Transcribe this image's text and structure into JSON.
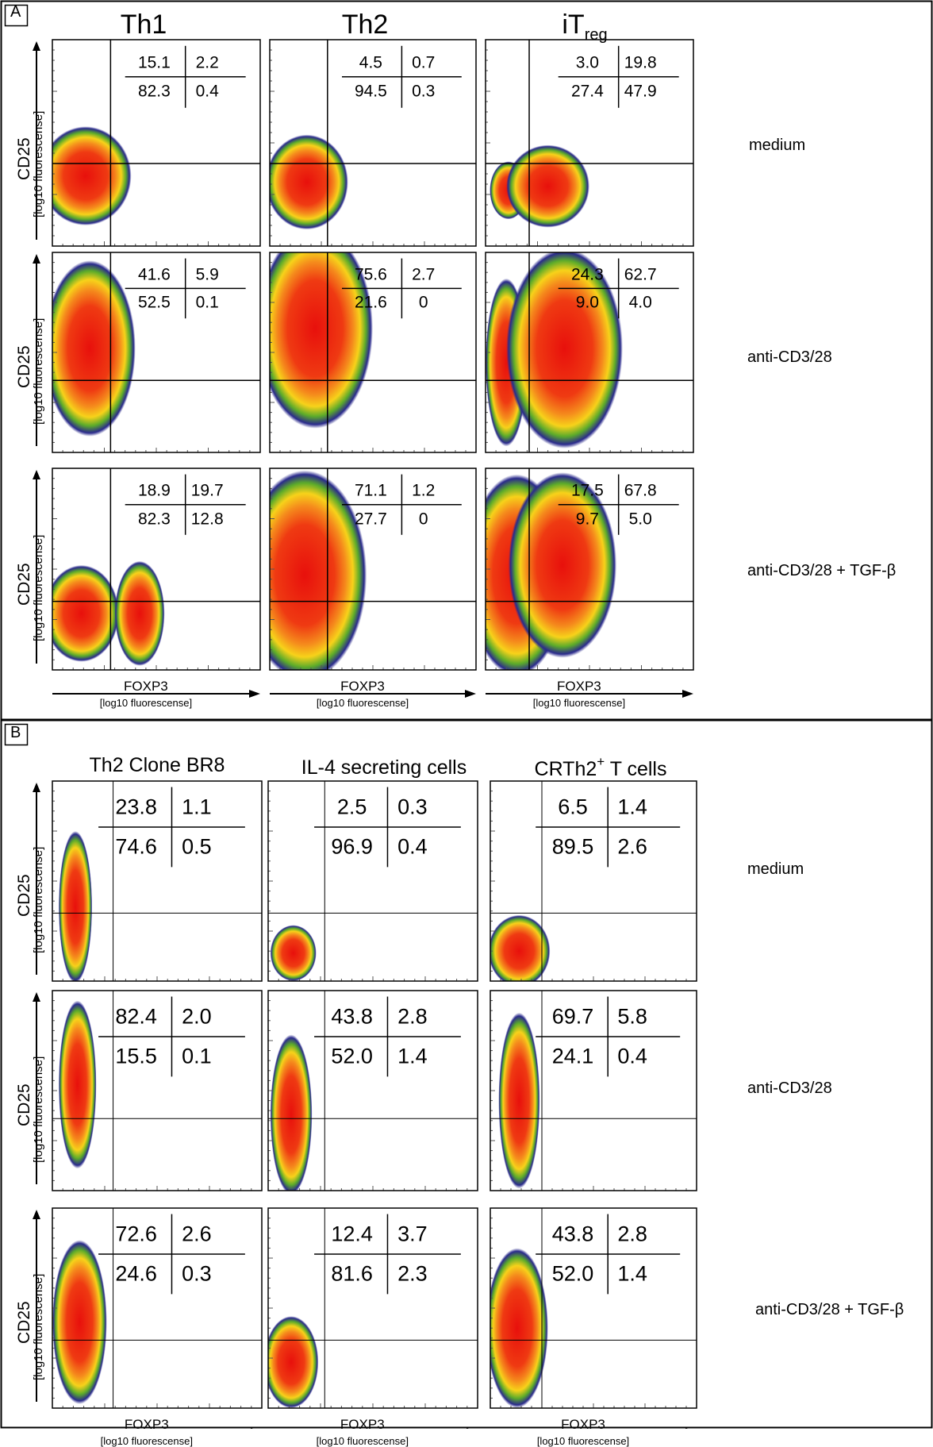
{
  "panel_a": {
    "label": "A",
    "columns": [
      {
        "title": "Th1",
        "subscript": ""
      },
      {
        "title": "Th2",
        "subscript": ""
      },
      {
        "title": "iT",
        "subscript": "reg"
      }
    ],
    "conditions": [
      "medium",
      "anti-CD3/28",
      "anti-CD3/28 + TGF-β"
    ],
    "ylabel": "CD25",
    "ylabel_sub": "[log10 fluorescense]",
    "xlabel": "FOXP3",
    "xlabel_sub": "[log10 fluorescense]",
    "quadrants": [
      [
        [
          "15.1",
          "2.2",
          "82.3",
          "0.4"
        ],
        [
          "4.5",
          "0.7",
          "94.5",
          "0.3"
        ],
        [
          "3.0",
          "19.8",
          "27.4",
          "47.9"
        ]
      ],
      [
        [
          "41.6",
          "5.9",
          "52.5",
          "0.1"
        ],
        [
          "75.6",
          "2.7",
          "21.6",
          "0"
        ],
        [
          "24.3",
          "62.7",
          "9.0",
          "4.0"
        ]
      ],
      [
        [
          "18.9",
          "19.7",
          "82.3",
          "12.8"
        ],
        [
          "71.1",
          "1.2",
          "27.7",
          "0"
        ],
        [
          "17.5",
          "67.8",
          "9.7",
          "5.0"
        ]
      ]
    ]
  },
  "panel_b": {
    "label": "B",
    "columns": [
      {
        "title": "Th2 Clone BR8",
        "sup": ""
      },
      {
        "title": "IL-4 secreting cells",
        "sup": ""
      },
      {
        "title": "CRTh2",
        "sup": "+",
        "after": " T cells"
      }
    ],
    "conditions": [
      "medium",
      "anti-CD3/28",
      "anti-CD3/28 + TGF-β"
    ],
    "ylabel": "CD25",
    "ylabel_sub": "[log10 fluorescense]",
    "xlabel": "FOXP3",
    "xlabel_sub": "[log10 fluorescense]",
    "quadrants": [
      [
        [
          "23.8",
          "1.1",
          "74.6",
          "0.5"
        ],
        [
          "2.5",
          "0.3",
          "96.9",
          "0.4"
        ],
        [
          "6.5",
          "1.4",
          "89.5",
          "2.6"
        ]
      ],
      [
        [
          "82.4",
          "2.0",
          "15.5",
          "0.1"
        ],
        [
          "43.8",
          "2.8",
          "52.0",
          "1.4"
        ],
        [
          "69.7",
          "5.8",
          "24.1",
          "0.4"
        ]
      ],
      [
        [
          "72.6",
          "2.6",
          "24.6",
          "0.3"
        ],
        [
          "12.4",
          "3.7",
          "81.6",
          "2.3"
        ],
        [
          "43.8",
          "2.8",
          "52.0",
          "1.4"
        ]
      ]
    ]
  }
}
